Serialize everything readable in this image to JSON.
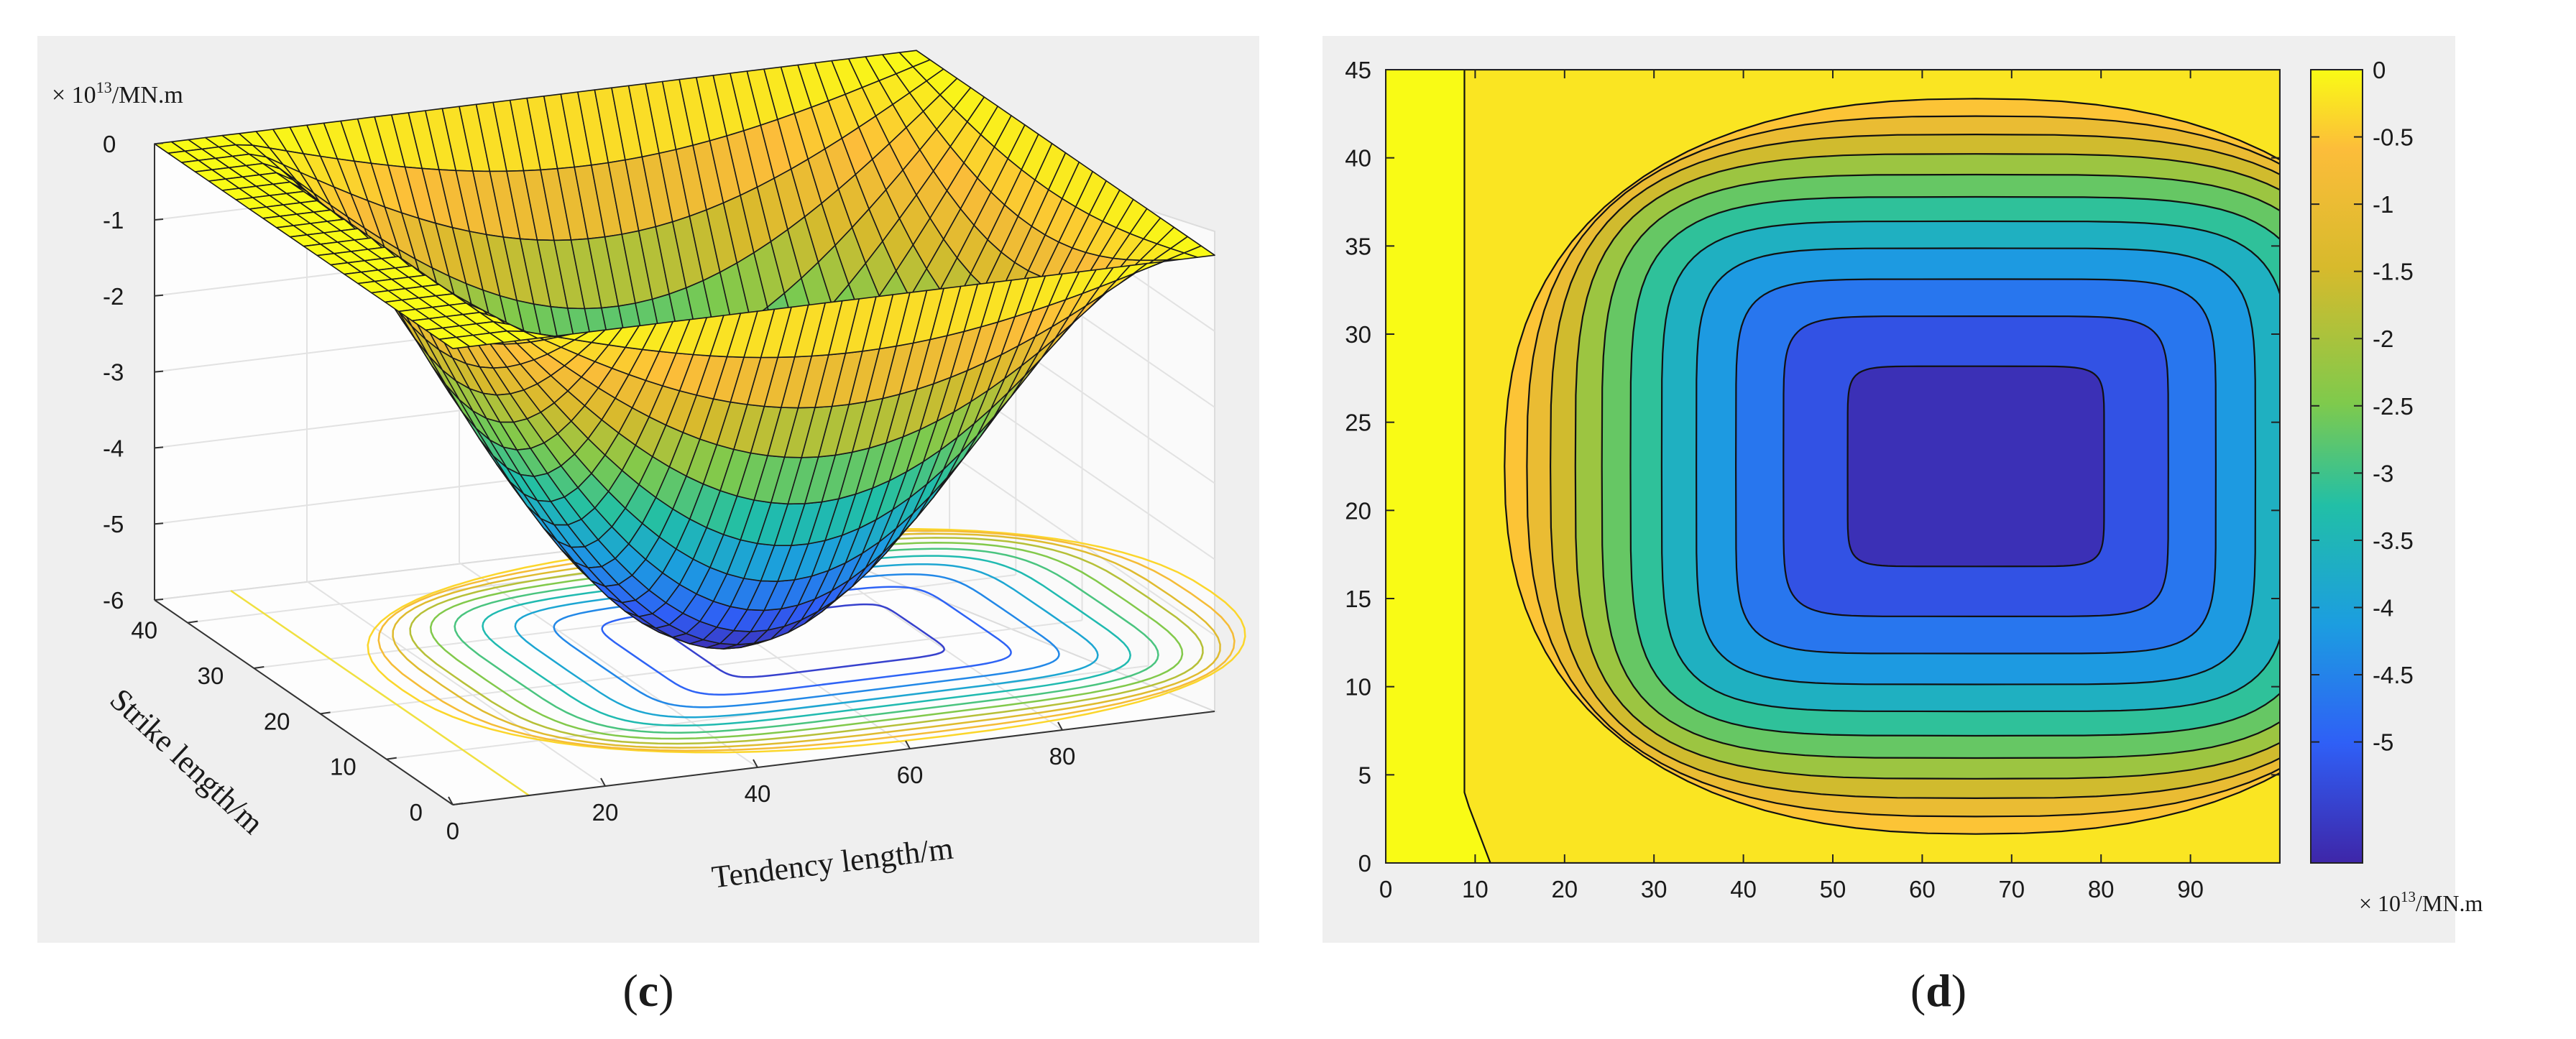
{
  "panels": {
    "c": {
      "caption": "c"
    },
    "d": {
      "caption": "d"
    }
  },
  "chart_data": [
    {
      "type": "surface",
      "panel": "c",
      "unit_prefix": "× 10",
      "unit_exponent": "13",
      "unit_suffix": "/MN.m",
      "xlabel": "Tendency length/m",
      "ylabel": "Strike length/m",
      "x_ticks": [
        "0",
        "20",
        "40",
        "60",
        "80"
      ],
      "y_ticks": [
        "0",
        "10",
        "20",
        "30",
        "40"
      ],
      "z_ticks": [
        "0",
        "-1",
        "-2",
        "-3",
        "-4",
        "-5",
        "-6"
      ],
      "xlim": [
        0,
        100
      ],
      "ylim": [
        0,
        45
      ],
      "zlim": [
        -6,
        0
      ],
      "z_min": -5.9,
      "z_min_location": [
        66,
        22.5
      ],
      "surface": "sinusoidal basin, zero on x = 0..10 and on all other edges",
      "contour_projection": true,
      "grid": true,
      "colormap": [
        "#3e26a8",
        "#2f5ff6",
        "#1c9de0",
        "#21bfa7",
        "#7fca4c",
        "#d7ba2c",
        "#fcbd3a",
        "#f9fb15"
      ]
    },
    {
      "type": "contourf",
      "panel": "d",
      "x_ticks": [
        "0",
        "10",
        "20",
        "30",
        "40",
        "50",
        "60",
        "70",
        "80",
        "90"
      ],
      "y_ticks": [
        "0",
        "5",
        "10",
        "15",
        "20",
        "25",
        "30",
        "35",
        "40",
        "45"
      ],
      "xlim": [
        0,
        100
      ],
      "ylim": [
        0,
        45
      ],
      "levels": [
        0,
        -0.5,
        -1,
        -1.5,
        -2,
        -2.5,
        -3,
        -3.5,
        -4,
        -4.5,
        -5,
        -5.5
      ],
      "z_min": -5.9,
      "z_min_location": [
        66,
        22.5
      ],
      "colorbar": {
        "ticks": [
          "0",
          "-0.5",
          "-1",
          "-1.5",
          "-2",
          "-2.5",
          "-3",
          "-3.5",
          "-4",
          "-4.5",
          "-5"
        ],
        "range": [
          -5.9,
          0
        ],
        "unit_prefix": "× 10",
        "unit_exponent": "13",
        "unit_suffix": "/MN.m"
      },
      "colormap": [
        "#3e26a8",
        "#2f5ff6",
        "#1c9de0",
        "#21bfa7",
        "#7fca4c",
        "#d7ba2c",
        "#fcbd3a",
        "#f9fb15"
      ]
    }
  ]
}
